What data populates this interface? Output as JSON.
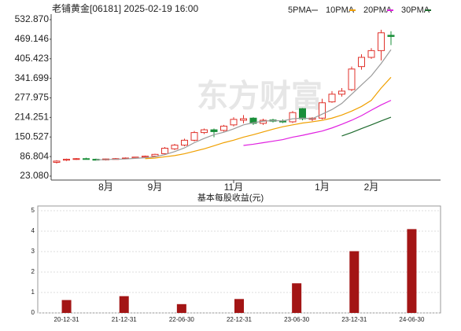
{
  "chart_data": [
    {
      "type": "candlestick",
      "title": "老铺黄金[06181] 2025-02-19 16:00",
      "watermark": "东方财富",
      "categories": [
        null,
        null,
        null,
        null,
        null,
        "8月",
        null,
        null,
        null,
        null,
        "9月",
        null,
        null,
        null,
        null,
        null,
        null,
        null,
        "11月",
        null,
        null,
        null,
        null,
        null,
        null,
        null,
        null,
        "1月",
        null,
        null,
        null,
        null,
        "2月",
        null,
        null
      ],
      "open": [
        68,
        75,
        79,
        80,
        78,
        76,
        79,
        80,
        82,
        85,
        88,
        96,
        112,
        124,
        140,
        165,
        174,
        172,
        190,
        205,
        212,
        195,
        206,
        202,
        200,
        243,
        208,
        212,
        265,
        290,
        305,
        380,
        410,
        432,
        482
      ],
      "high": [
        75,
        80,
        82,
        83,
        80,
        80,
        82,
        84,
        86,
        90,
        96,
        118,
        128,
        145,
        170,
        178,
        178,
        190,
        215,
        222,
        215,
        210,
        210,
        208,
        235,
        245,
        215,
        275,
        300,
        310,
        380,
        420,
        440,
        500,
        495
      ],
      "low": [
        64,
        72,
        76,
        77,
        74,
        74,
        77,
        78,
        80,
        83,
        86,
        94,
        108,
        120,
        136,
        160,
        150,
        168,
        185,
        195,
        190,
        190,
        198,
        196,
        196,
        205,
        202,
        208,
        262,
        282,
        300,
        370,
        405,
        400,
        450
      ],
      "close": [
        72,
        78,
        80,
        79,
        75,
        79,
        80,
        82,
        85,
        88,
        94,
        114,
        124,
        140,
        165,
        174,
        168,
        186,
        208,
        210,
        195,
        205,
        202,
        200,
        230,
        210,
        212,
        262,
        290,
        300,
        372,
        410,
        432,
        490,
        478
      ],
      "up_color": "#e0322b",
      "down_color": "#1a8f3a",
      "ma": [
        {
          "name": "5PMA",
          "color": "#9a9a9a",
          "values": [
            null,
            null,
            null,
            null,
            76,
            77,
            78,
            79,
            81,
            83,
            86,
            93,
            103,
            115,
            132,
            146,
            158,
            166,
            177,
            190,
            197,
            202,
            204,
            203,
            210,
            212,
            210,
            225,
            240,
            260,
            290,
            320,
            350,
            390,
            435
          ]
        },
        {
          "name": "10PMA",
          "color": "#f0a000",
          "values": [
            null,
            null,
            null,
            null,
            null,
            null,
            null,
            null,
            null,
            80,
            82,
            86,
            90,
            96,
            104,
            112,
            122,
            132,
            140,
            150,
            158,
            167,
            176,
            184,
            190,
            196,
            200,
            205,
            212,
            222,
            235,
            250,
            270,
            310,
            345
          ]
        },
        {
          "name": "20PMA",
          "color": "#e020e0",
          "values": [
            null,
            null,
            null,
            null,
            null,
            null,
            null,
            null,
            null,
            null,
            null,
            null,
            null,
            null,
            null,
            null,
            null,
            null,
            null,
            123,
            127,
            132,
            137,
            142,
            150,
            156,
            163,
            170,
            180,
            192,
            205,
            220,
            238,
            255,
            270
          ]
        },
        {
          "name": "30PMA",
          "color": "#1e6b2e",
          "values": [
            null,
            null,
            null,
            null,
            null,
            null,
            null,
            null,
            null,
            null,
            null,
            null,
            null,
            null,
            null,
            null,
            null,
            null,
            null,
            null,
            null,
            null,
            null,
            null,
            null,
            null,
            null,
            null,
            null,
            154,
            165,
            178,
            190,
            203,
            215
          ]
        }
      ],
      "ylim": [
        23.08,
        532.87
      ],
      "yticks": [
        {
          "value": 532.87,
          "label": "532.870"
        },
        469.146,
        405.423,
        341.699,
        277.975,
        214.251,
        150.527,
        86.804,
        {
          "value": 23.08,
          "label": "23.080"
        }
      ]
    },
    {
      "type": "bar",
      "title": "基本每股收益(元)",
      "color": "#a31515",
      "categories": [
        "20-12-31",
        "21-12-31",
        "22-06-30",
        "22-12-31",
        "23-06-30",
        "23-12-31",
        "24-06-30"
      ],
      "values": [
        0.63,
        0.82,
        0.43,
        0.68,
        1.45,
        3.02,
        4.1
      ],
      "ylim": [
        0,
        5
      ],
      "yticks": [
        0,
        1,
        2,
        3,
        4,
        5
      ],
      "grid": true
    }
  ]
}
